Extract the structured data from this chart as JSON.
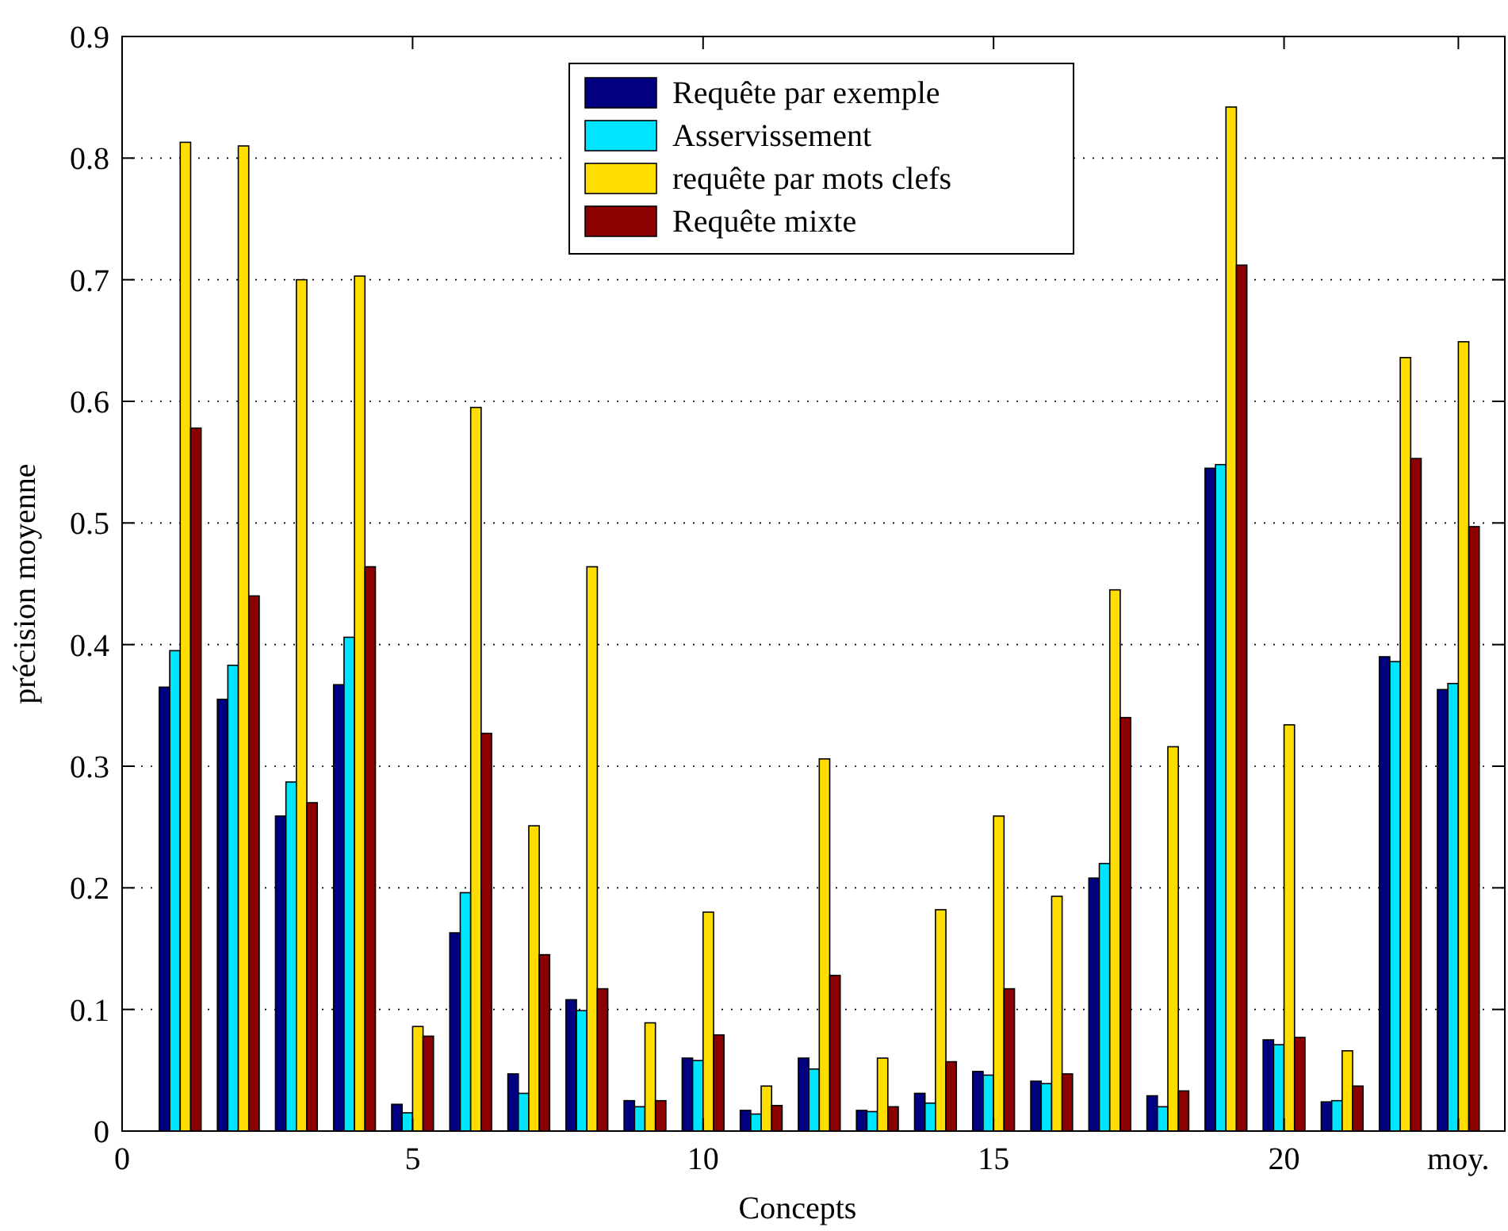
{
  "chart_data": {
    "type": "bar",
    "xlabel": "Concepts",
    "ylabel": "précision moyenne",
    "x": [
      1,
      2,
      3,
      4,
      5,
      6,
      7,
      8,
      9,
      10,
      11,
      12,
      13,
      14,
      15,
      16,
      17,
      18,
      19,
      20,
      21,
      22,
      23
    ],
    "xlim": [
      0,
      23.8
    ],
    "xticks": [
      0,
      5,
      10,
      15,
      20,
      {
        "value": 23,
        "label": "moy."
      }
    ],
    "ylim": [
      0,
      0.9
    ],
    "yticks": [
      0,
      0.1,
      0.2,
      0.3,
      0.4,
      0.5,
      0.6,
      0.7,
      0.8,
      0.9
    ],
    "grid": "y",
    "legend": "top",
    "series": [
      {
        "name": "Requête par exemple",
        "color": "#000080",
        "values": [
          0.365,
          0.355,
          0.259,
          0.367,
          0.022,
          0.163,
          0.047,
          0.108,
          0.025,
          0.06,
          0.017,
          0.06,
          0.017,
          0.031,
          0.049,
          0.041,
          0.208,
          0.029,
          0.545,
          0.075,
          0.024,
          0.39,
          0.363
        ]
      },
      {
        "name": "Asservissement",
        "color": "#00e5ff",
        "values": [
          0.395,
          0.383,
          0.287,
          0.406,
          0.015,
          0.196,
          0.031,
          0.099,
          0.02,
          0.058,
          0.014,
          0.051,
          0.016,
          0.023,
          0.046,
          0.039,
          0.22,
          0.02,
          0.548,
          0.071,
          0.025,
          0.386,
          0.368
        ]
      },
      {
        "name": "requête par mots clefs",
        "color": "#ffdd00",
        "values": [
          0.813,
          0.81,
          0.7,
          0.703,
          0.086,
          0.595,
          0.251,
          0.464,
          0.089,
          0.18,
          0.037,
          0.306,
          0.06,
          0.182,
          0.259,
          0.193,
          0.445,
          0.316,
          0.842,
          0.334,
          0.066,
          0.636,
          0.649
        ]
      },
      {
        "name": "Requête mixte",
        "color": "#8b0000",
        "values": [
          0.578,
          0.44,
          0.27,
          0.464,
          0.078,
          0.327,
          0.145,
          0.117,
          0.025,
          0.079,
          0.021,
          0.128,
          0.02,
          0.057,
          0.117,
          0.047,
          0.34,
          0.033,
          0.712,
          0.077,
          0.037,
          0.553,
          0.497
        ]
      }
    ]
  }
}
